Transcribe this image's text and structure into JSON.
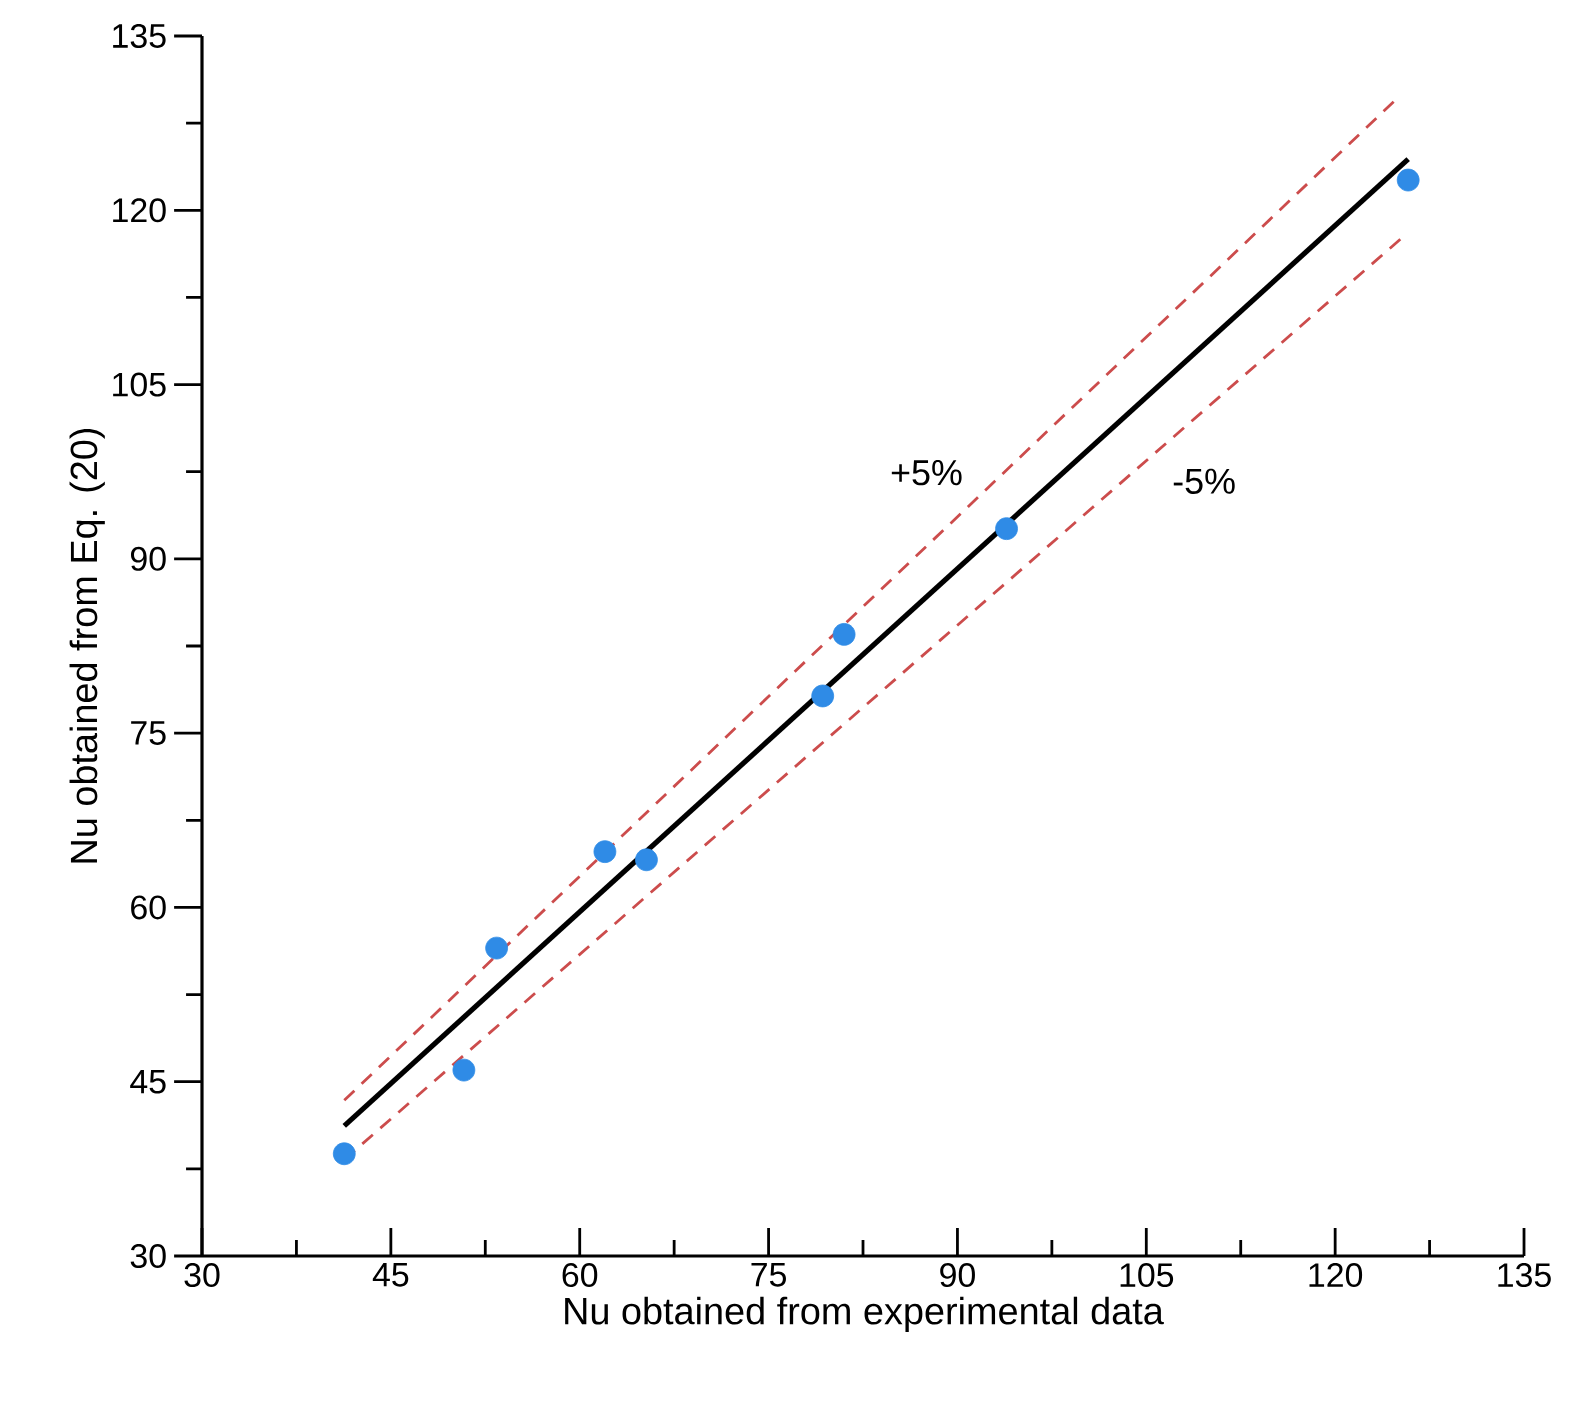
{
  "chart_data": {
    "type": "scatter",
    "xlabel": "Nu obtained from experimental data",
    "ylabel": "Nu obtained from Eq. (20)",
    "xlim": [
      30,
      135
    ],
    "ylim": [
      30,
      135
    ],
    "xticks": [
      30,
      45,
      60,
      75,
      90,
      105,
      120,
      135
    ],
    "yticks": [
      30,
      45,
      60,
      75,
      90,
      105,
      120,
      135
    ],
    "grid": false,
    "series": [
      {
        "marker": "circle",
        "color": "#2f8be6",
        "x": [
          41.3,
          50.8,
          53.4,
          62.0,
          65.3,
          79.3,
          81.0,
          93.9,
          125.8
        ],
        "values": [
          38.8,
          46.0,
          56.5,
          64.8,
          64.1,
          78.2,
          83.5,
          92.6,
          122.6
        ]
      },
      {
        "type": "line",
        "color": "#000000",
        "line_style": "solid",
        "x": [
          41.3,
          125.8
        ],
        "values": [
          41.2,
          124.4
        ]
      },
      {
        "type": "line",
        "color": "#cc4c4c",
        "line_style": "dashed",
        "x": [
          41.3,
          124.7
        ],
        "values": [
          43.4,
          129.4
        ]
      },
      {
        "type": "line",
        "color": "#cc4c4c",
        "line_style": "dashed",
        "x": [
          41.3,
          125.7
        ],
        "values": [
          38.3,
          118.0
        ]
      }
    ],
    "annotations": [
      "+5%",
      "-5%"
    ]
  }
}
